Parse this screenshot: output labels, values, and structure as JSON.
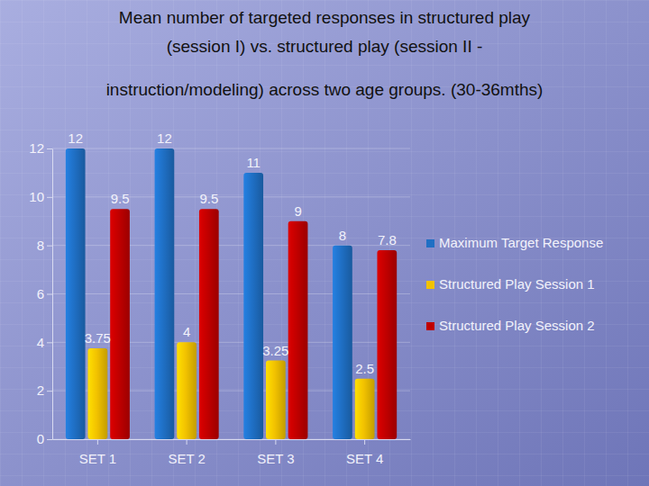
{
  "chart_data": {
    "type": "bar",
    "title": [
      "Mean number of targeted responses in structured play",
      "(session I) vs. structured play (session II -",
      "instruction/modeling) across two age groups. (30-36mths)"
    ],
    "categories": [
      "SET 1",
      "SET 2",
      "SET 3",
      "SET 4"
    ],
    "series": [
      {
        "name": "Maximum Target Response",
        "color": "#1f6fc4",
        "values": [
          12,
          12,
          11,
          8
        ]
      },
      {
        "name": "Structured Play Session 1",
        "color": "#f2c200",
        "values": [
          3.75,
          4,
          3.25,
          2.5
        ]
      },
      {
        "name": "Structured Play Session 2",
        "color": "#c00000",
        "values": [
          9.5,
          9.5,
          9,
          7.8
        ]
      }
    ],
    "ylim": [
      0,
      12
    ],
    "yticks": [
      0,
      2,
      4,
      6,
      8,
      10,
      12
    ],
    "grid": true,
    "legend": "right",
    "data_labels": true
  }
}
